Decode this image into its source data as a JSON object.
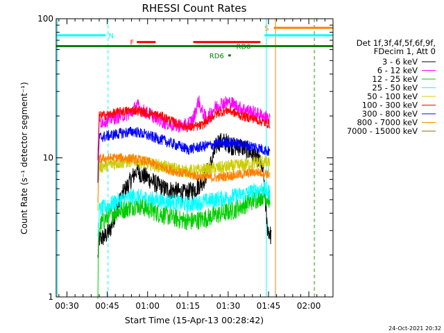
{
  "chart_data": {
    "type": "line",
    "title": "RHESSI Count Rates",
    "xlabel": "Start Time (15-Apr-13 00:28:42)",
    "ylabel": "Count Rate (s⁻¹ detector segment⁻¹)",
    "yscale": "log",
    "ylim": [
      1,
      100
    ],
    "xlim_minutes": [
      26,
      129
    ],
    "x_ticks": [
      {
        "t": 30,
        "label": "00:30"
      },
      {
        "t": 45,
        "label": "00:45"
      },
      {
        "t": 60,
        "label": "01:00"
      },
      {
        "t": 75,
        "label": "01:15"
      },
      {
        "t": 90,
        "label": "01:30"
      },
      {
        "t": 105,
        "label": "01:45"
      },
      {
        "t": 120,
        "label": "02:00"
      }
    ],
    "y_ticks": [
      {
        "v": 1,
        "label": "1"
      },
      {
        "v": 10,
        "label": "10"
      },
      {
        "v": 100,
        "label": "100"
      }
    ],
    "legend_header": [
      "Det 1f,3f,4f,5f,6f,9f,",
      "FDecim 1, Att 0"
    ],
    "legend_placement": "right",
    "series": [
      {
        "name": "3 - 6 keV",
        "color": "#000000",
        "noise": 0.07,
        "points": [
          [
            41.5,
            1.9
          ],
          [
            42,
            2.6
          ],
          [
            44,
            2.7
          ],
          [
            46,
            3.0
          ],
          [
            48,
            4.0
          ],
          [
            51,
            5.6
          ],
          [
            54,
            7.0
          ],
          [
            56,
            8.2
          ],
          [
            58,
            7.5
          ],
          [
            60,
            7.2
          ],
          [
            63,
            6.5
          ],
          [
            66,
            6.0
          ],
          [
            70,
            5.8
          ],
          [
            74,
            5.5
          ],
          [
            78,
            6.0
          ],
          [
            81,
            7.0
          ],
          [
            84,
            9.5
          ],
          [
            86,
            13
          ],
          [
            89,
            13
          ],
          [
            92,
            12
          ],
          [
            95,
            12
          ],
          [
            98,
            11
          ],
          [
            101,
            10
          ],
          [
            103,
            8
          ],
          [
            104.5,
            3.2
          ],
          [
            106,
            2.7
          ]
        ]
      },
      {
        "name": "6 - 12 keV",
        "color": "#ff00ff",
        "noise": 0.05,
        "points": [
          [
            41.5,
            9
          ],
          [
            42,
            18
          ],
          [
            46,
            19
          ],
          [
            50,
            20
          ],
          [
            54,
            21
          ],
          [
            56,
            24
          ],
          [
            58,
            22
          ],
          [
            62,
            20
          ],
          [
            66,
            18
          ],
          [
            70,
            17
          ],
          [
            74,
            17
          ],
          [
            77,
            19
          ],
          [
            79,
            26
          ],
          [
            80,
            22
          ],
          [
            82,
            19
          ],
          [
            85,
            23
          ],
          [
            88,
            25
          ],
          [
            91,
            25
          ],
          [
            94,
            23
          ],
          [
            97,
            22
          ],
          [
            100,
            21
          ],
          [
            103,
            20
          ],
          [
            105.5,
            19
          ]
        ]
      },
      {
        "name": "12 - 25 keV",
        "color": "#00cc00",
        "noise": 0.07,
        "points": [
          [
            41.5,
            1.1
          ],
          [
            42,
            3.2
          ],
          [
            44,
            3.6
          ],
          [
            48,
            4.1
          ],
          [
            52,
            4.3
          ],
          [
            56,
            4.6
          ],
          [
            60,
            4.3
          ],
          [
            64,
            4.0
          ],
          [
            68,
            3.8
          ],
          [
            72,
            3.6
          ],
          [
            76,
            3.5
          ],
          [
            80,
            3.6
          ],
          [
            84,
            3.8
          ],
          [
            88,
            4.0
          ],
          [
            92,
            4.2
          ],
          [
            96,
            4.6
          ],
          [
            100,
            5.0
          ],
          [
            103,
            5.4
          ],
          [
            105.5,
            5.0
          ]
        ]
      },
      {
        "name": "25 - 50 keV",
        "color": "#00ffff",
        "noise": 0.06,
        "points": [
          [
            41.5,
            2.6
          ],
          [
            42,
            4.2
          ],
          [
            46,
            4.6
          ],
          [
            50,
            5.0
          ],
          [
            55,
            5.3
          ],
          [
            60,
            5.1
          ],
          [
            65,
            4.9
          ],
          [
            70,
            4.8
          ],
          [
            75,
            4.6
          ],
          [
            80,
            4.8
          ],
          [
            85,
            5.0
          ],
          [
            90,
            5.2
          ],
          [
            95,
            5.4
          ],
          [
            100,
            5.8
          ],
          [
            103,
            6.0
          ],
          [
            105.5,
            5.6
          ]
        ]
      },
      {
        "name": "50 - 100 keV",
        "color": "#cccc00",
        "noise": 0.05,
        "points": [
          [
            41.5,
            4.6
          ],
          [
            42,
            8.6
          ],
          [
            46,
            9.0
          ],
          [
            50,
            9.3
          ],
          [
            55,
            9.6
          ],
          [
            60,
            9.1
          ],
          [
            65,
            8.7
          ],
          [
            70,
            8.3
          ],
          [
            75,
            8.0
          ],
          [
            80,
            8.1
          ],
          [
            85,
            8.4
          ],
          [
            90,
            8.6
          ],
          [
            95,
            8.8
          ],
          [
            100,
            9.2
          ],
          [
            103,
            9.4
          ],
          [
            105.5,
            9.0
          ]
        ]
      },
      {
        "name": "100 - 300 keV",
        "color": "#ff0000",
        "noise": 0.035,
        "points": [
          [
            41.5,
            10
          ],
          [
            42,
            20
          ],
          [
            46,
            20.5
          ],
          [
            50,
            21.5
          ],
          [
            55,
            22
          ],
          [
            60,
            21
          ],
          [
            65,
            20
          ],
          [
            70,
            18
          ],
          [
            75,
            16.5
          ],
          [
            80,
            17
          ],
          [
            83,
            19
          ],
          [
            86,
            21
          ],
          [
            90,
            22
          ],
          [
            95,
            20
          ],
          [
            100,
            19
          ],
          [
            103,
            18
          ],
          [
            105.5,
            17.5
          ]
        ]
      },
      {
        "name": "300 - 800 keV",
        "color": "#0000ff",
        "noise": 0.04,
        "points": [
          [
            41.5,
            7
          ],
          [
            42,
            14
          ],
          [
            46,
            14.5
          ],
          [
            50,
            15
          ],
          [
            55,
            15.5
          ],
          [
            60,
            14.5
          ],
          [
            65,
            13.5
          ],
          [
            70,
            12.5
          ],
          [
            75,
            11.5
          ],
          [
            80,
            12
          ],
          [
            85,
            12.5
          ],
          [
            90,
            13
          ],
          [
            95,
            12.5
          ],
          [
            100,
            12
          ],
          [
            103,
            11.5
          ],
          [
            105.5,
            11
          ]
        ]
      },
      {
        "name": "800 - 7000 keV",
        "color": "#ff8000",
        "noise": 0.035,
        "points": [
          [
            41.5,
            5
          ],
          [
            42,
            9.8
          ],
          [
            46,
            10
          ],
          [
            50,
            10
          ],
          [
            55,
            9.8
          ],
          [
            60,
            9.4
          ],
          [
            65,
            8.6
          ],
          [
            70,
            8.0
          ],
          [
            75,
            7.6
          ],
          [
            80,
            7.3
          ],
          [
            85,
            7.2
          ],
          [
            90,
            7.4
          ],
          [
            95,
            7.6
          ],
          [
            100,
            7.9
          ],
          [
            103,
            7.8
          ],
          [
            105.5,
            7.6
          ]
        ]
      },
      {
        "name": "7000 - 15000 keV",
        "color": "#996600",
        "noise": 0.0,
        "points": []
      }
    ],
    "flag_bars": [
      {
        "label": "N",
        "color": "#00ffff",
        "y": 76,
        "segments": [
          [
            26,
            44.5
          ],
          [
            103.5,
            129
          ]
        ],
        "label_t": 45.5
      },
      {
        "label": "S",
        "color": "#ff8000",
        "y": 86,
        "segments": [
          [
            107,
            129
          ]
        ],
        "label_t": 103.5
      },
      {
        "label": "F",
        "color": "#ff0000",
        "y": 68,
        "segments": [
          [
            56,
            63
          ],
          [
            77,
            102
          ]
        ],
        "label_t": 53.5
      },
      {
        "label": "RD0",
        "color": "#008000",
        "y": 63.5,
        "segments": [
          [
            26,
            129
          ]
        ],
        "label_t": 93
      },
      {
        "label": "RD6",
        "color": "#008000",
        "y": 54.5,
        "segments": [
          [
            90,
            91
          ]
        ],
        "label_t": 83
      }
    ],
    "vlines": [
      {
        "t": 45.3,
        "color": "#00ffff",
        "dash": true
      },
      {
        "t": 104.2,
        "color": "#00ffff",
        "dash": false
      },
      {
        "t": 26.4,
        "color": "#00ffff",
        "dash": false
      },
      {
        "t": 107.6,
        "color": "#ff8000",
        "dash": false
      },
      {
        "t": 122.2,
        "color": "#00ffff",
        "dash": true
      },
      {
        "t": 122.0,
        "color": "#ff8000",
        "dash": true
      }
    ],
    "footer_date": "24-Oct-2021 20:32"
  }
}
